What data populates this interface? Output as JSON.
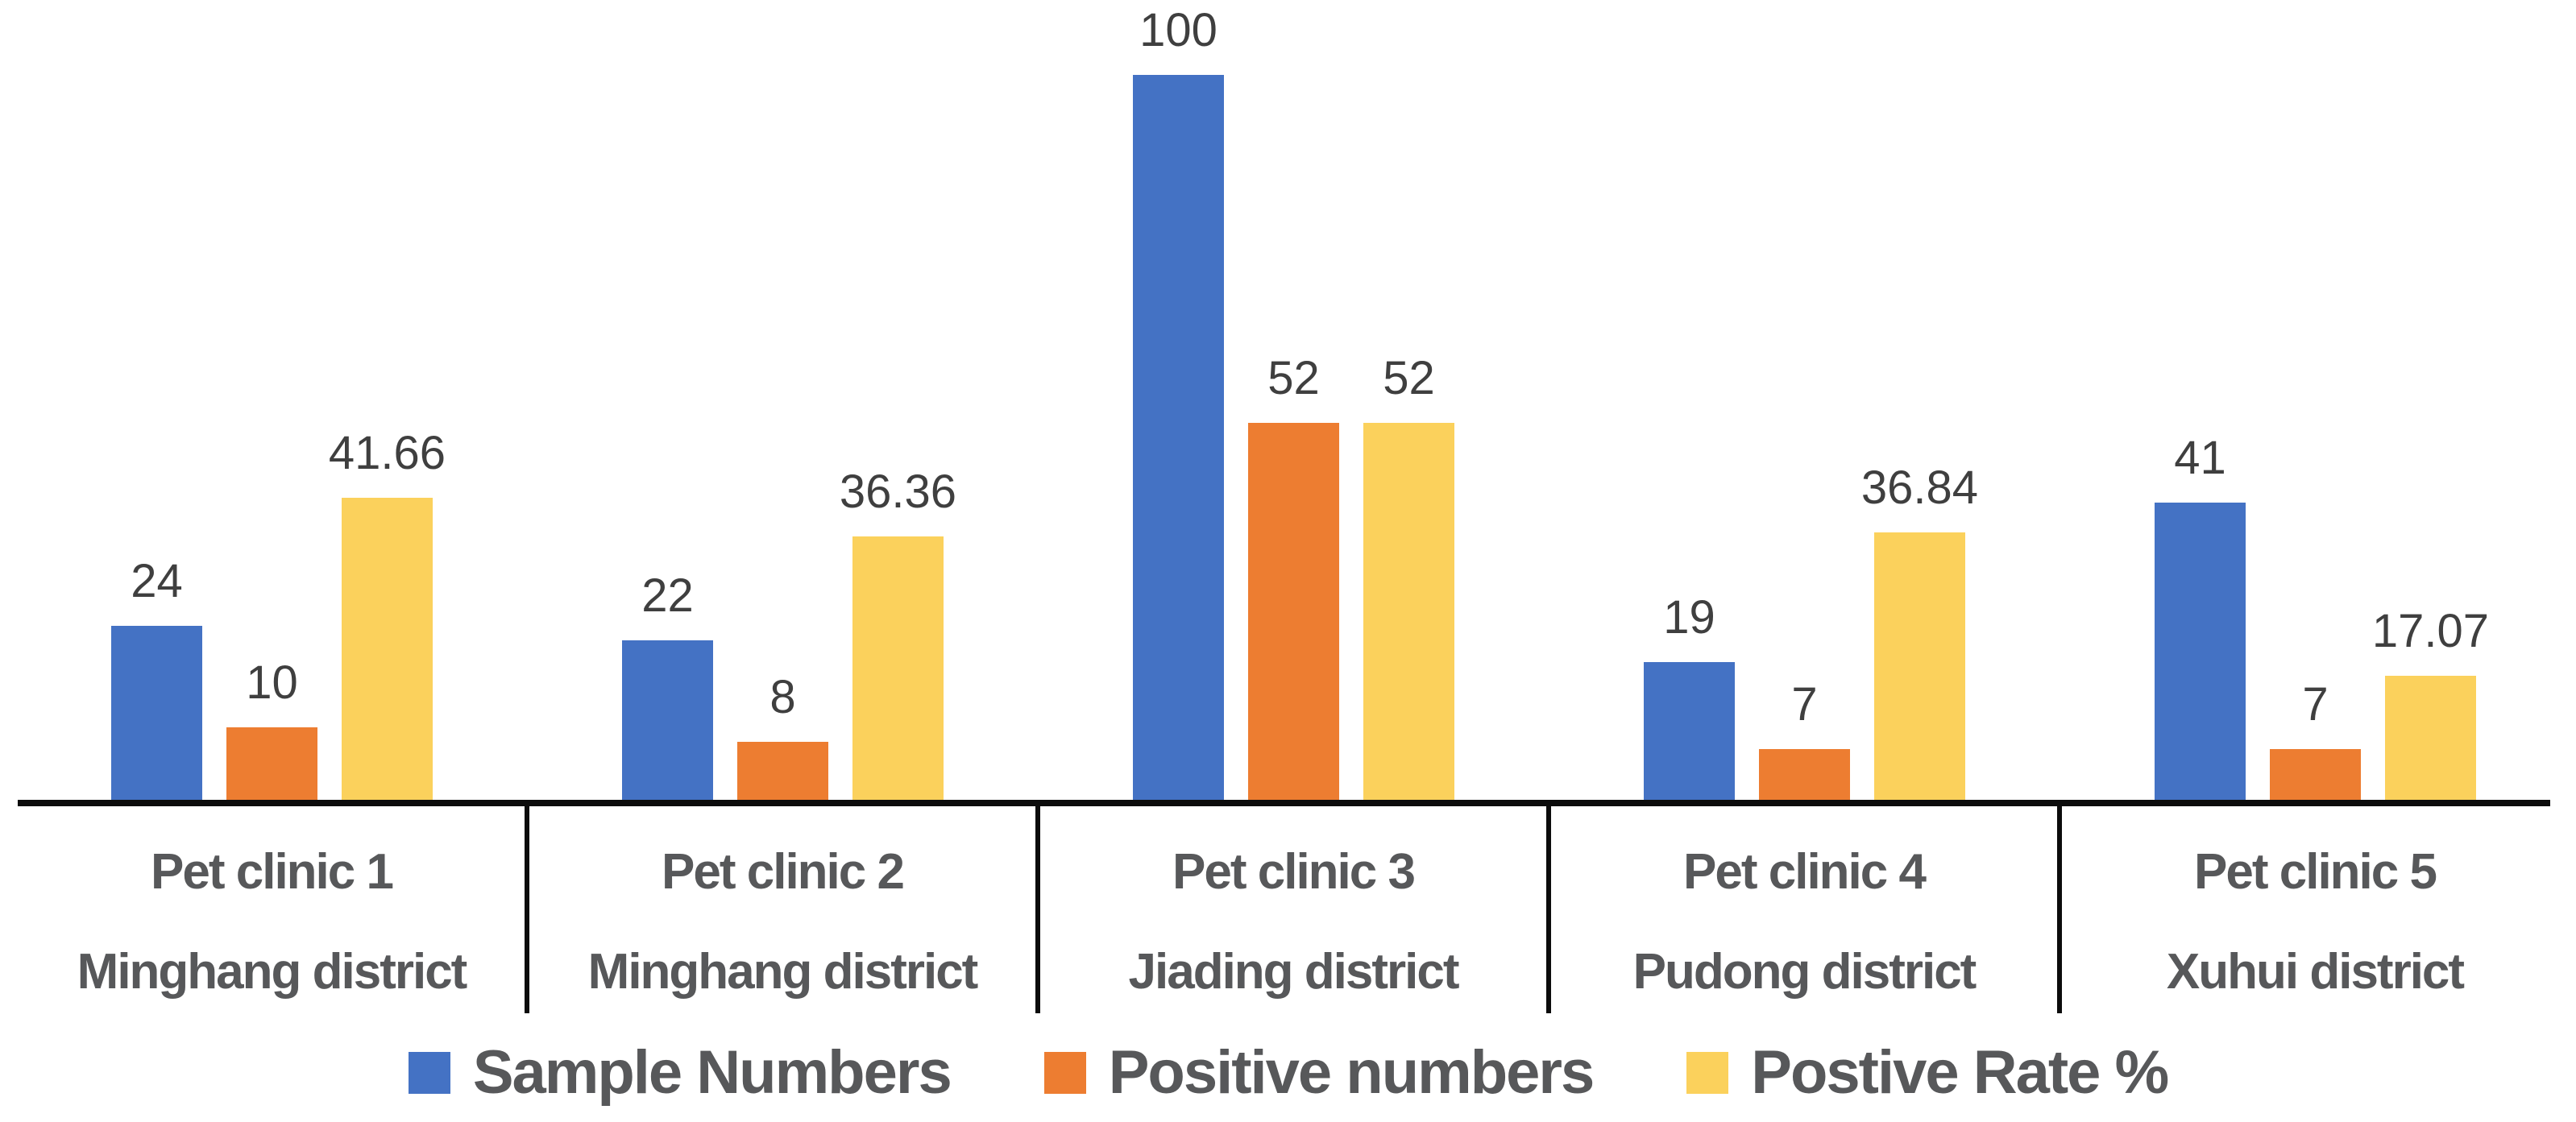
{
  "chart_data": {
    "type": "bar",
    "title": "",
    "xlabel": "",
    "ylabel": "",
    "ylim": [
      0,
      100
    ],
    "grid": false,
    "y_axis_shown": false,
    "value_labels_shown": true,
    "legend_position": "bottom",
    "categories": [
      {
        "clinic": "Pet clinic 1",
        "district": "Minghang district"
      },
      {
        "clinic": "Pet clinic 2",
        "district": "Minghang district"
      },
      {
        "clinic": "Pet clinic 3",
        "district": "Jiading district"
      },
      {
        "clinic": "Pet clinic 4",
        "district": "Pudong district"
      },
      {
        "clinic": "Pet clinic 5",
        "district": "Xuhui district"
      }
    ],
    "series": [
      {
        "name": "Sample Numbers",
        "color": "#4472C4",
        "values": [
          24,
          22,
          100,
          19,
          41
        ]
      },
      {
        "name": "Positive numbers",
        "color": "#ED7D31",
        "values": [
          10,
          8,
          52,
          7,
          7
        ]
      },
      {
        "name": "Postive Rate %",
        "color": "#FBD15C",
        "values": [
          41.66,
          36.36,
          52,
          36.84,
          17.07
        ]
      }
    ],
    "colors": {
      "axis": "#0c0c0c",
      "value_label_text": "#3f3f3f",
      "category_label_text": "#57585a",
      "legend_text": "#57585a",
      "background": "#ffffff"
    }
  }
}
